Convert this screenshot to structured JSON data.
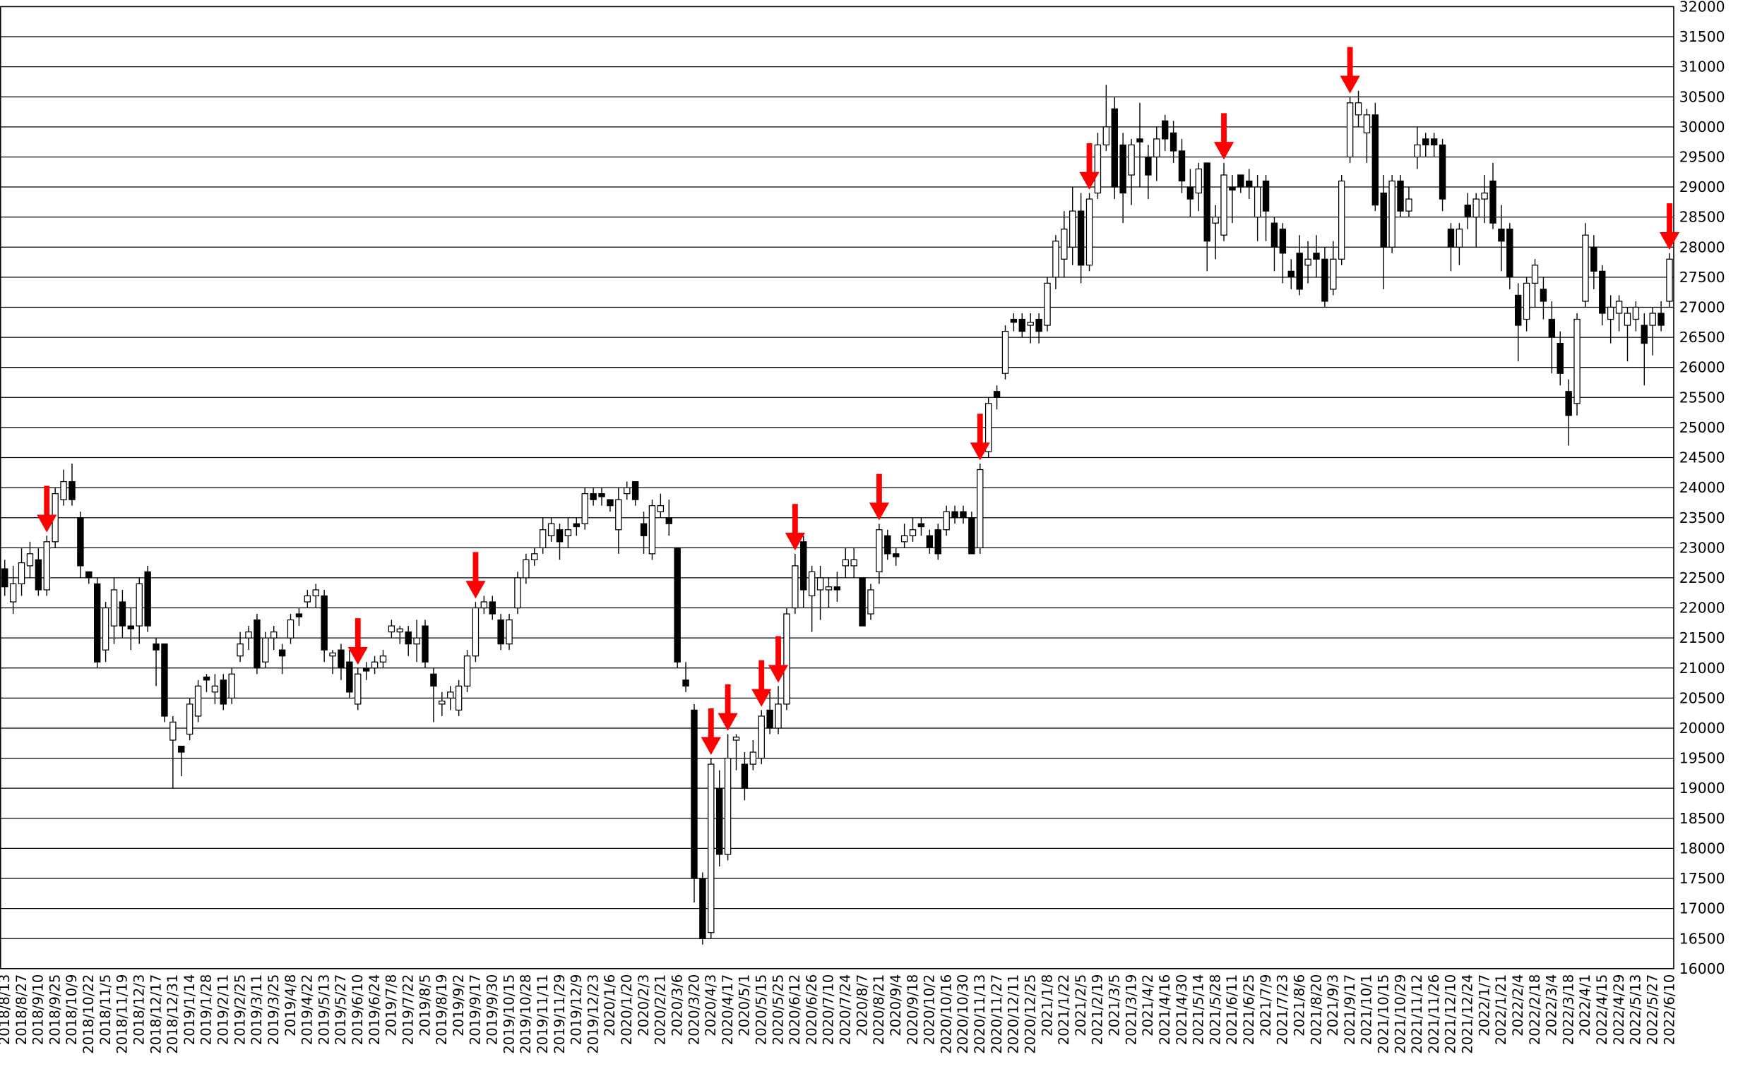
{
  "chart_data": {
    "type": "candlestick",
    "categories": [
      "2018/8/13",
      null,
      "2018/8/27",
      null,
      "2018/9/10",
      null,
      "2018/9/25",
      null,
      "2018/10/9",
      null,
      "2018/10/22",
      null,
      "2018/11/5",
      null,
      "2018/11/19",
      null,
      "2018/12/3",
      null,
      "2018/12/17",
      null,
      "2018/12/31",
      null,
      "2019/1/14",
      null,
      "2019/1/28",
      null,
      "2019/2/11",
      null,
      "2019/2/25",
      null,
      "2019/3/11",
      null,
      "2019/3/25",
      null,
      "2019/4/8",
      null,
      "2019/4/22",
      null,
      "2019/5/13",
      null,
      "2019/5/27",
      null,
      "2019/6/10",
      null,
      "2019/6/24",
      null,
      "2019/7/8",
      null,
      "2019/7/22",
      null,
      "2019/8/5",
      null,
      "2019/8/19",
      null,
      "2019/9/2",
      null,
      "2019/9/17",
      null,
      "2019/9/30",
      null,
      "2019/10/15",
      null,
      "2019/10/28",
      null,
      "2019/11/11",
      null,
      "2019/11/29",
      null,
      "2019/12/9",
      null,
      "2019/12/23",
      null,
      "2020/1/6",
      null,
      "2020/1/20",
      null,
      "2020/2/3",
      null,
      "2020/2/21",
      null,
      "2020/3/6",
      null,
      "2020/3/20",
      null,
      "2020/4/3",
      null,
      "2020/4/17",
      null,
      "2020/5/1",
      null,
      "2020/5/15",
      null,
      "2020/5/25",
      null,
      "2020/6/12",
      null,
      "2020/6/26",
      null,
      "2020/7/10",
      null,
      "2020/7/24",
      null,
      "2020/8/7",
      null,
      "2020/8/21",
      null,
      "2020/9/4",
      null,
      "2020/9/18",
      null,
      "2020/10/2",
      null,
      "2020/10/16",
      null,
      "2020/10/30",
      null,
      "2020/11/13",
      null,
      "2020/11/27",
      null,
      "2020/12/11",
      null,
      "2020/12/25",
      null,
      "2021/1/8",
      null,
      "2021/1/22",
      null,
      "2021/2/5",
      null,
      "2021/2/19",
      null,
      "2021/3/5",
      null,
      "2021/3/19",
      null,
      "2021/4/2",
      null,
      "2021/4/16",
      null,
      "2021/4/30",
      null,
      "2021/5/14",
      null,
      "2021/5/28",
      null,
      "2021/6/11",
      null,
      "2021/6/25",
      null,
      "2021/7/9",
      null,
      "2021/7/23",
      null,
      "2021/8/6",
      null,
      "2021/8/20",
      null,
      "2021/9/3",
      null,
      "2021/9/17",
      null,
      "2021/10/1",
      null,
      "2021/10/15",
      null,
      "2021/10/29",
      null,
      "2021/11/12",
      null,
      "2021/11/26",
      null,
      "2021/12/10",
      null,
      "2021/12/24",
      null,
      "2022/1/7",
      null,
      "2022/1/21",
      null,
      "2022/2/4",
      null,
      "2022/2/18",
      null,
      "2022/3/4",
      null,
      "2022/3/18",
      null,
      "2022/4/1",
      null,
      "2022/4/15",
      null,
      "2022/4/29",
      null,
      "2022/5/13",
      null,
      "2022/5/27",
      null,
      "2022/6/10"
    ],
    "open": [
      22650,
      22100,
      22400,
      22700,
      22800,
      22300,
      23100,
      23800,
      24100,
      23500,
      22600,
      22400,
      21300,
      21700,
      22100,
      21700,
      21700,
      22600,
      21400,
      21400,
      19800,
      19700,
      19900,
      20200,
      20850,
      20600,
      20800,
      20500,
      21200,
      21500,
      21800,
      21100,
      21500,
      21300,
      21500,
      21900,
      22100,
      22200,
      22200,
      21200,
      21300,
      21100,
      20400,
      21000,
      21000,
      21100,
      21600,
      21600,
      21600,
      21400,
      21700,
      20900,
      20400,
      20500,
      20300,
      20700,
      21200,
      22000,
      22100,
      21800,
      21400,
      22000,
      22500,
      22800,
      23000,
      23200,
      23300,
      23200,
      23400,
      23400,
      23900,
      23900,
      23800,
      23300,
      23900,
      24100,
      23400,
      22900,
      23600,
      23500,
      23000,
      20800,
      20300,
      17500,
      16600,
      19000,
      17900,
      19800,
      19400,
      19400,
      19500,
      20300,
      20000,
      20400,
      22000,
      23100,
      22200,
      22300,
      22300,
      22350,
      22700,
      22700,
      22500,
      21900,
      22600,
      23200,
      22900,
      23100,
      23200,
      23400,
      23200,
      23300,
      23300,
      23600,
      23600,
      23500,
      23000,
      24600,
      25600,
      25900,
      26800,
      26800,
      26700,
      26800,
      26700,
      27500,
      27800,
      28000,
      28600,
      27700,
      28900,
      29700,
      30300,
      29700,
      29200,
      29800,
      29500,
      29500,
      30100,
      29900,
      29600,
      29000,
      28900,
      29400,
      28400,
      28200,
      29000,
      29200,
      29100,
      28500,
      29100,
      28400,
      28300,
      27600,
      27900,
      27700,
      27900,
      27800,
      27300,
      27800,
      29500,
      30200,
      29900,
      30200,
      28900,
      28000,
      29100,
      28600,
      29500,
      29800,
      29800,
      29700,
      28300,
      28000,
      28700,
      28500,
      28800,
      29100,
      28300,
      28300,
      27200,
      26800,
      27400,
      27300,
      26800,
      26400,
      25600,
      25400,
      27100,
      28000,
      27600,
      26800,
      26900,
      26700,
      26800,
      26700,
      26700,
      26900,
      27100
    ],
    "high": [
      22800,
      22700,
      23000,
      23100,
      23000,
      23200,
      24000,
      24300,
      24400,
      23600,
      22600,
      22500,
      22100,
      22500,
      22300,
      22000,
      22500,
      22700,
      21500,
      21400,
      20200,
      19700,
      20500,
      20800,
      20900,
      20900,
      20900,
      21000,
      21600,
      21700,
      21900,
      21600,
      21700,
      21400,
      21900,
      22000,
      22300,
      22400,
      22300,
      21300,
      21400,
      21300,
      21000,
      21100,
      21200,
      21300,
      21800,
      21700,
      21700,
      21800,
      21800,
      21000,
      20600,
      20700,
      20800,
      21300,
      22100,
      22200,
      22200,
      21900,
      21900,
      22600,
      22900,
      23000,
      23500,
      23500,
      23400,
      23500,
      23500,
      24000,
      24000,
      24000,
      23800,
      24000,
      24100,
      24100,
      23600,
      23800,
      23900,
      23800,
      23000,
      21100,
      20400,
      17600,
      19500,
      19300,
      19900,
      19900,
      19600,
      19800,
      20300,
      20600,
      20700,
      22000,
      22900,
      23200,
      22700,
      22700,
      22500,
      22600,
      23000,
      23000,
      22500,
      22400,
      23400,
      23300,
      23000,
      23400,
      23500,
      23500,
      23300,
      23400,
      23700,
      23700,
      23700,
      23600,
      24400,
      25500,
      25700,
      26700,
      26900,
      26900,
      26900,
      26900,
      27500,
      28200,
      28600,
      29000,
      28900,
      28900,
      29900,
      30700,
      30500,
      29900,
      29800,
      30400,
      29700,
      30000,
      30200,
      30100,
      29800,
      29300,
      29400,
      29400,
      28700,
      29400,
      29200,
      29200,
      29300,
      29200,
      29200,
      28500,
      28400,
      27800,
      28200,
      28100,
      28200,
      28000,
      28100,
      29200,
      30500,
      30600,
      30300,
      30400,
      29200,
      29200,
      29200,
      29000,
      30000,
      29900,
      29900,
      29800,
      28400,
      28400,
      28900,
      28900,
      29200,
      29400,
      28700,
      28400,
      27400,
      27500,
      27800,
      27500,
      27100,
      26600,
      25800,
      26900,
      28400,
      28200,
      27700,
      27200,
      27200,
      27000,
      27100,
      26900,
      27000,
      27100,
      27900
    ],
    "low": [
      22200,
      21900,
      22200,
      22500,
      22200,
      22200,
      23000,
      23700,
      23700,
      22500,
      22400,
      21000,
      21100,
      21400,
      21500,
      21300,
      21400,
      21600,
      20700,
      20100,
      19000,
      19200,
      19800,
      20100,
      20600,
      20400,
      20300,
      20400,
      21100,
      21300,
      20900,
      21000,
      21300,
      20900,
      21400,
      21700,
      22000,
      22000,
      21100,
      20900,
      20800,
      20500,
      20300,
      20800,
      20900,
      21000,
      21500,
      21400,
      21200,
      21100,
      21000,
      20100,
      20200,
      20300,
      20200,
      20600,
      21100,
      21900,
      21800,
      21300,
      21300,
      21900,
      22400,
      22700,
      22900,
      23100,
      22800,
      23000,
      23200,
      23300,
      23700,
      23700,
      23600,
      22900,
      23800,
      23700,
      22900,
      22800,
      23500,
      23200,
      21000,
      20600,
      17100,
      16400,
      16500,
      17700,
      17800,
      19300,
      18800,
      19300,
      19400,
      19900,
      19900,
      20300,
      21900,
      22000,
      21600,
      21800,
      22000,
      22100,
      22500,
      22500,
      21700,
      21800,
      22400,
      22800,
      22700,
      23000,
      23100,
      23200,
      22900,
      22800,
      23200,
      23400,
      23400,
      22900,
      22900,
      24500,
      25300,
      25800,
      26600,
      26500,
      26400,
      26400,
      26600,
      27300,
      27500,
      27700,
      27400,
      27600,
      28800,
      29600,
      28800,
      28400,
      28700,
      29000,
      28800,
      29100,
      29600,
      29400,
      28900,
      28500,
      28600,
      27600,
      27800,
      28100,
      28400,
      28900,
      28800,
      28100,
      28100,
      27600,
      27400,
      27300,
      27200,
      27400,
      27500,
      27000,
      27200,
      27700,
      29400,
      30000,
      29400,
      28600,
      27300,
      27900,
      28500,
      28500,
      29300,
      29500,
      29500,
      28600,
      27600,
      27700,
      28300,
      28000,
      28400,
      28300,
      27600,
      27300,
      26100,
      26600,
      27000,
      26800,
      25900,
      25700,
      24700,
      25200,
      27000,
      27300,
      26700,
      26400,
      26600,
      26100,
      26600,
      25700,
      26200,
      26600,
      27000
    ],
    "close": [
      22350,
      22400,
      22750,
      22900,
      22300,
      23100,
      23900,
      24100,
      23800,
      22700,
      22500,
      21100,
      22000,
      22300,
      21700,
      21650,
      22400,
      21700,
      21300,
      20200,
      20100,
      19600,
      20400,
      20700,
      20800,
      20700,
      20400,
      20900,
      21400,
      21600,
      21000,
      21500,
      21600,
      21200,
      21800,
      21850,
      22200,
      22300,
      21300,
      21250,
      21000,
      20600,
      20900,
      20950,
      21100,
      21200,
      21700,
      21650,
      21400,
      21500,
      21100,
      20700,
      20450,
      20600,
      20700,
      21200,
      22000,
      22100,
      21900,
      21400,
      21800,
      22500,
      22800,
      22900,
      23300,
      23400,
      23100,
      23300,
      23350,
      23900,
      23800,
      23850,
      23700,
      23800,
      24000,
      23800,
      23200,
      23700,
      23700,
      23400,
      21100,
      20700,
      17500,
      16500,
      19400,
      17900,
      19500,
      19850,
      19000,
      19600,
      20200,
      20000,
      20400,
      21900,
      22700,
      22300,
      22600,
      22500,
      22350,
      22300,
      22800,
      22800,
      21700,
      22300,
      23300,
      22900,
      22850,
      23200,
      23300,
      23350,
      23000,
      22900,
      23600,
      23500,
      23500,
      22900,
      24300,
      25400,
      25500,
      26600,
      26750,
      26600,
      26750,
      26600,
      27400,
      28100,
      28300,
      28600,
      27700,
      28800,
      29700,
      30000,
      29000,
      28900,
      29700,
      29750,
      29200,
      29800,
      29800,
      29600,
      29100,
      28800,
      29300,
      28100,
      28500,
      29200,
      28950,
      29000,
      29000,
      29000,
      28600,
      28000,
      27900,
      27500,
      27300,
      27800,
      27800,
      27100,
      27800,
      29100,
      30400,
      30400,
      30200,
      28700,
      28000,
      29100,
      28600,
      28800,
      29700,
      29700,
      29700,
      28800,
      28000,
      28300,
      28500,
      28800,
      28900,
      28400,
      28100,
      27500,
      26700,
      27400,
      27700,
      27100,
      26500,
      25900,
      25200,
      26800,
      28200,
      27600,
      26900,
      27000,
      27100,
      26900,
      27000,
      26400,
      26900,
      26700,
      27800
    ],
    "signals": [
      5,
      42,
      56,
      84,
      86,
      90,
      92,
      94,
      104,
      116,
      129,
      145,
      160,
      198
    ],
    "up_color": "#ffffff",
    "down_color": "#000000",
    "signal_color": "#ff0000",
    "ylim": [
      16000,
      32000
    ],
    "yticks": [
      16000,
      16500,
      17000,
      17500,
      18000,
      18500,
      19000,
      19500,
      20000,
      20500,
      21000,
      21500,
      22000,
      22500,
      23000,
      23500,
      24000,
      24500,
      25000,
      25500,
      26000,
      26500,
      27000,
      27500,
      28000,
      28500,
      29000,
      29500,
      30000,
      30500,
      31000,
      31500,
      32000
    ],
    "grid": true
  }
}
